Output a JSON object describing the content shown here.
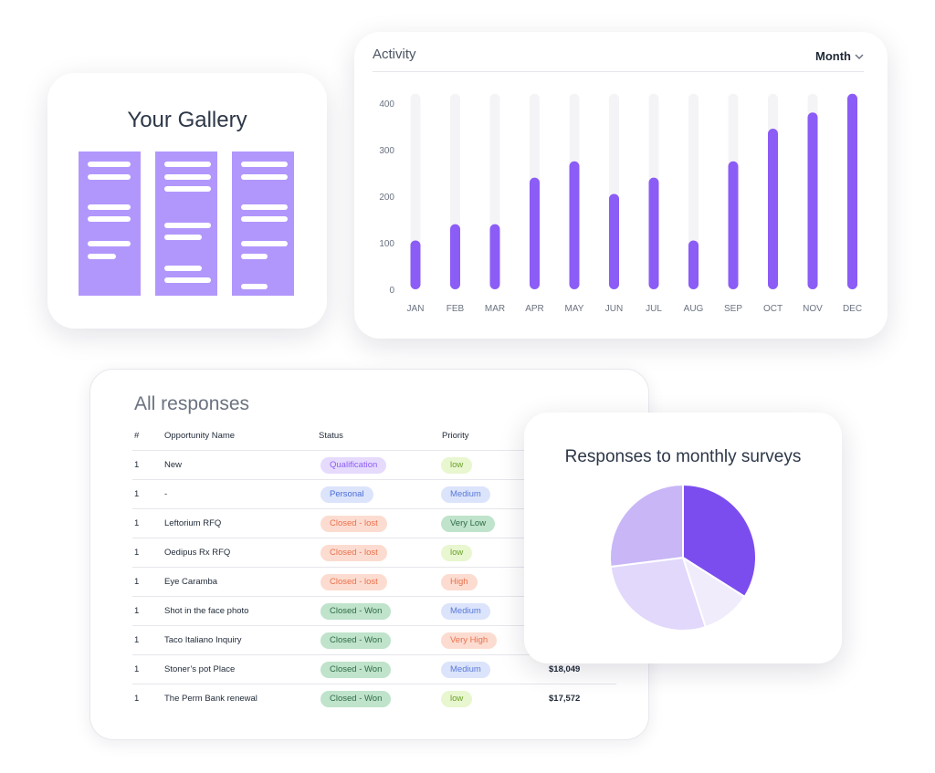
{
  "gallery": {
    "title": "Your Gallery"
  },
  "activity": {
    "title": "Activity",
    "period_label": "Month",
    "chart_data": {
      "type": "bar",
      "categories": [
        "JAN",
        "FEB",
        "MAR",
        "APR",
        "MAY",
        "JUN",
        "JUL",
        "AUG",
        "SEP",
        "OCT",
        "NOV",
        "DEC"
      ],
      "values": [
        105,
        140,
        140,
        240,
        275,
        205,
        240,
        105,
        275,
        345,
        380,
        420
      ],
      "track_max": 420,
      "yticks": [
        400,
        300,
        200,
        100,
        0
      ],
      "ylim": [
        0,
        420
      ],
      "colors": {
        "bar": "#8b5cf6",
        "track": "#f4f4f7"
      }
    }
  },
  "responses": {
    "title": "All responses",
    "headers": {
      "num": "#",
      "name": "Opportunity Name",
      "status": "Status",
      "priority": "Priority"
    },
    "rows": [
      {
        "num": "1",
        "name": "New",
        "status": "Qualification",
        "priority": "low",
        "amount": ""
      },
      {
        "num": "1",
        "name": "-",
        "status": "Personal",
        "priority": "Medium",
        "amount": ""
      },
      {
        "num": "1",
        "name": "Leftorium RFQ",
        "status": "Closed - lost",
        "priority": "Very Low",
        "amount": ""
      },
      {
        "num": "1",
        "name": "Oedipus Rx RFQ",
        "status": "Closed - lost",
        "priority": "low",
        "amount": ""
      },
      {
        "num": "1",
        "name": "Eye Caramba",
        "status": "Closed - lost",
        "priority": "High",
        "amount": ""
      },
      {
        "num": "1",
        "name": "Shot in the face photo",
        "status": "Closed - Won",
        "priority": "Medium",
        "amount": ""
      },
      {
        "num": "1",
        "name": "Taco Italiano Inquiry",
        "status": "Closed - Won",
        "priority": "Very High",
        "amount": ""
      },
      {
        "num": "1",
        "name": "Stoner’s pot Place",
        "status": "Closed - Won",
        "priority": "Medium",
        "amount": "$18,049"
      },
      {
        "num": "1",
        "name": "The Perm Bank renewal",
        "status": "Closed - Won",
        "priority": "low",
        "amount": "$17,572"
      }
    ],
    "pill_colors": {
      "Qualification": {
        "bg": "#e6dbfd",
        "fg": "#8b5cf6"
      },
      "Personal": {
        "bg": "#dbe4fb",
        "fg": "#4b6bd6"
      },
      "Closed - lost": {
        "bg": "#fcdcd0",
        "fg": "#e9714d"
      },
      "Closed - Won": {
        "bg": "#bfe3cb",
        "fg": "#2f6b45"
      },
      "low": {
        "bg": "#e8f7cf",
        "fg": "#6b9f2c"
      },
      "Medium": {
        "bg": "#dbe4fb",
        "fg": "#5a79d8"
      },
      "Very Low": {
        "bg": "#bfe3cb",
        "fg": "#2f6b45"
      },
      "High": {
        "bg": "#fcdcd0",
        "fg": "#e9714d"
      },
      "Very High": {
        "bg": "#fcdcd0",
        "fg": "#e9714d"
      }
    }
  },
  "survey": {
    "title": "Responses to monthly surveys",
    "chart_data": {
      "type": "pie",
      "values": [
        34,
        11,
        28,
        27
      ],
      "colors": [
        "#7c4dee",
        "#f0ecfc",
        "#e2d8fb",
        "#c8b6f7"
      ]
    }
  }
}
